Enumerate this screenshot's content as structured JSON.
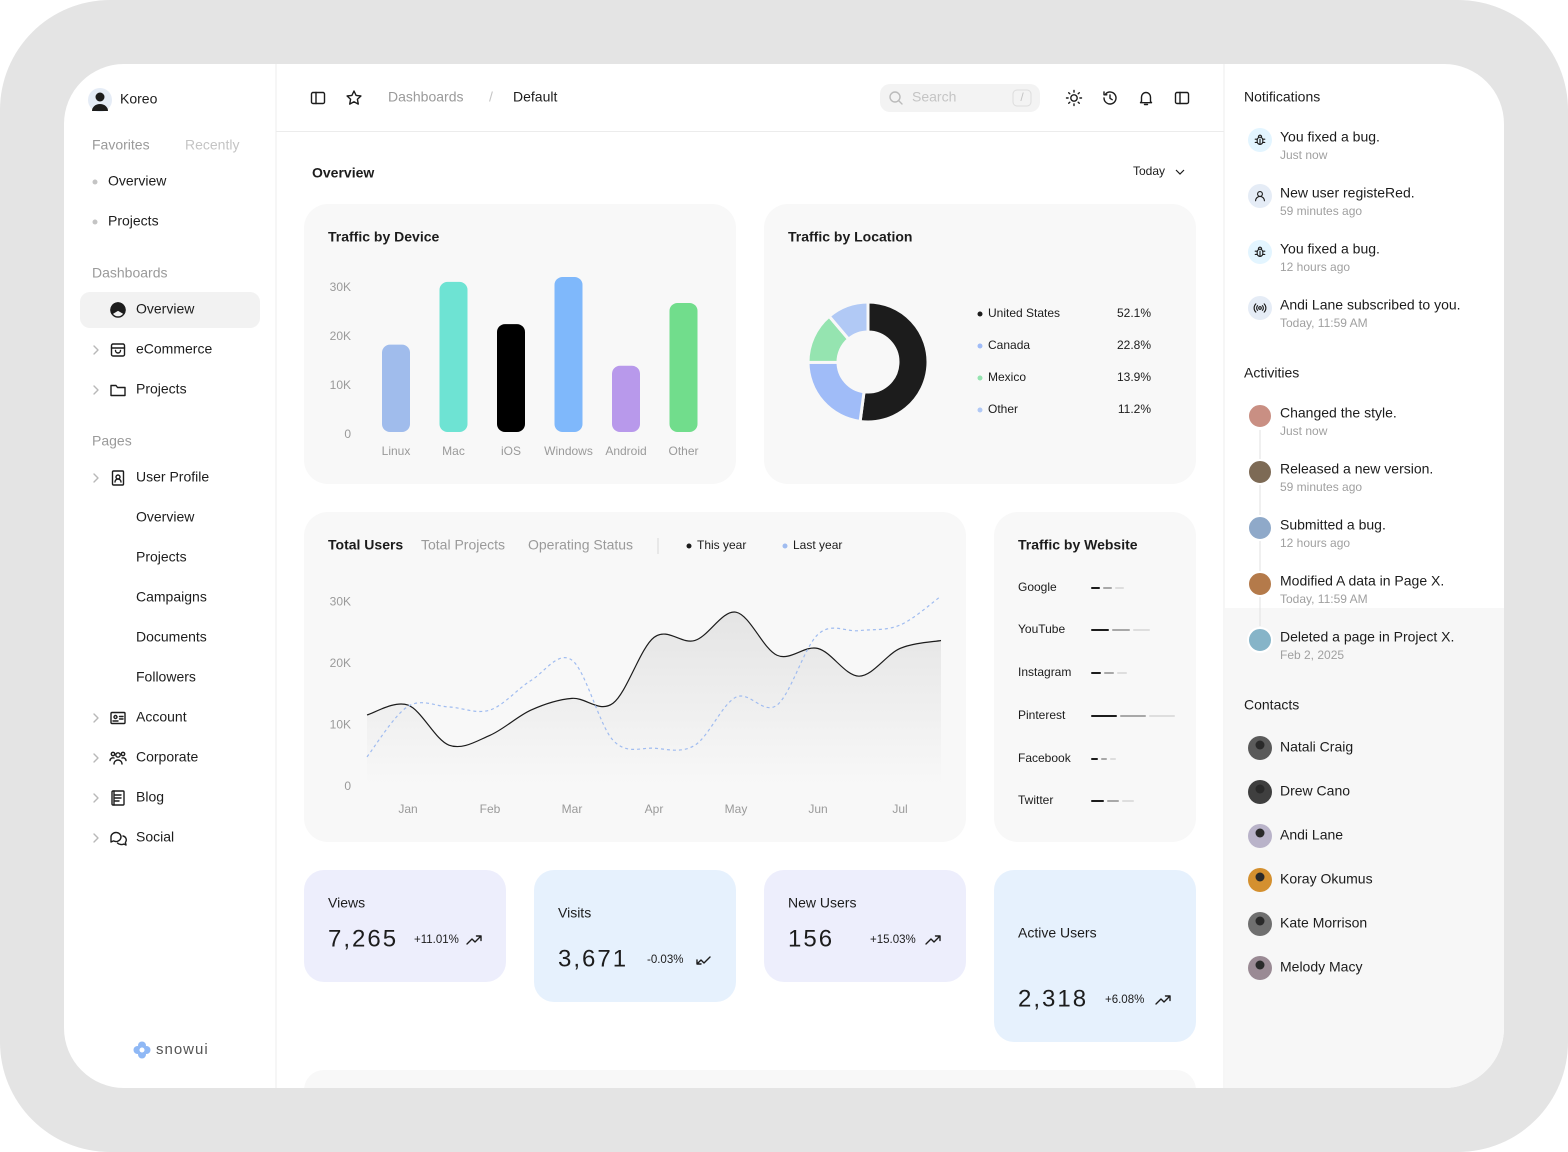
{
  "sidebar": {
    "brand": "Koreo",
    "tabs": [
      "Favorites",
      "Recently"
    ],
    "favorites": [
      "Overview",
      "Projects"
    ],
    "dashboards_heading": "Dashboards",
    "dashboards": [
      "Overview",
      "eCommerce",
      "Projects"
    ],
    "pages_heading": "Pages",
    "pages": [
      "User Profile",
      "Overview",
      "Projects",
      "Campaigns",
      "Documents",
      "Followers",
      "Account",
      "Corporate",
      "Blog",
      "Social"
    ],
    "logo": "snowui"
  },
  "topbar": {
    "breadcrumb": [
      "Dashboards",
      "/",
      "Default"
    ],
    "search": "Search",
    "shortcut": "/"
  },
  "overview": {
    "title": "Overview",
    "range": "Today"
  },
  "chart_data": [
    {
      "type": "bar",
      "title": "Traffic by Device",
      "categories": [
        "Linux",
        "Mac",
        "iOS",
        "Windows",
        "Android",
        "Other"
      ],
      "values": [
        17800,
        30600,
        22000,
        31600,
        13500,
        26300
      ],
      "colors": [
        "#a0bcec",
        "#6ee3d3",
        "#000000",
        "#7fb8fb",
        "#b899eb",
        "#71dd8c"
      ],
      "ylim": [
        0,
        32000
      ],
      "yticks": [
        0,
        {
          "value": 10000,
          "label": "10K"
        },
        {
          "value": 20000,
          "label": "20K"
        },
        {
          "value": 30000,
          "label": "30K"
        }
      ]
    },
    {
      "type": "pie",
      "title": "Traffic by Location",
      "donut": true,
      "categories": [
        "United States",
        "Canada",
        "Mexico",
        "Other"
      ],
      "values": [
        52.1,
        22.8,
        13.9,
        11.2
      ],
      "value_labels": [
        "52.1%",
        "22.8%",
        "13.9%",
        "11.2%"
      ],
      "colors": [
        "#1c1c1c",
        "#a0bcf8",
        "#95e4b0",
        "#b1c9f5"
      ]
    },
    {
      "type": "line",
      "title": "Total Users",
      "tabs": [
        "Total Projects",
        "Operating Status"
      ],
      "categories": [
        null,
        "Jan",
        null,
        "Feb",
        null,
        "Mar",
        null,
        "Apr",
        null,
        "May",
        null,
        "Jun",
        null,
        "Jul",
        null
      ],
      "series": [
        {
          "name": "This year",
          "color": "#1c1c1c",
          "style": "solid",
          "area": true,
          "values": [
            11700,
            13300,
            6800,
            8400,
            12500,
            14400,
            13600,
            24300,
            23800,
            28400,
            21400,
            22500,
            18000,
            22500,
            23800
          ]
        },
        {
          "name": "Last year",
          "color": "#a0bcf0",
          "style": "dashed",
          "values": [
            4900,
            13100,
            13000,
            12500,
            17300,
            20600,
            7600,
            6300,
            6800,
            14600,
            13300,
            24800,
            25400,
            26300,
            31000
          ]
        }
      ],
      "ylim": [
        0,
        32000
      ],
      "yticks": [
        0,
        {
          "value": 10000,
          "label": "10K"
        },
        {
          "value": 20000,
          "label": "20K"
        },
        {
          "value": 30000,
          "label": "30K"
        }
      ]
    },
    {
      "type": "bar",
      "orientation": "horizontal",
      "stacked": true,
      "title": "Traffic by Website",
      "categories": [
        "Google",
        "YouTube",
        "Instagram",
        "Pinterest",
        "Facebook",
        "Twitter"
      ],
      "series": [
        {
          "color": "#1c1c1c",
          "values": [
            9,
            18,
            10,
            26,
            7,
            13
          ]
        },
        {
          "color": "#a8a8a8",
          "values": [
            9,
            18,
            10,
            26,
            6,
            12
          ]
        },
        {
          "color": "#dedede",
          "values": [
            9,
            17,
            10,
            26,
            6,
            12
          ]
        }
      ],
      "xlim": [
        0,
        100
      ]
    }
  ],
  "stats": [
    {
      "label": "Views",
      "value": "7,265",
      "change": "+11.01%"
    },
    {
      "label": "Visits",
      "value": "3,671",
      "change": "-0.03%"
    },
    {
      "label": "New Users",
      "value": "156",
      "change": "+15.03%"
    },
    {
      "label": "Active Users",
      "value": "2,318",
      "change": "+6.08%"
    }
  ],
  "notifications": {
    "title": "Notifications",
    "items": [
      {
        "text": "You fixed a bug.",
        "time": "Just now"
      },
      {
        "text": "New user registeRed.",
        "time": "59 minutes ago"
      },
      {
        "text": "You fixed a bug.",
        "time": "12 hours ago"
      },
      {
        "text": "Andi Lane subscribed to you.",
        "time": "Today, 11:59 AM"
      }
    ]
  },
  "activities": {
    "title": "Activities",
    "items": [
      {
        "text": "Changed the style.",
        "time": "Just now"
      },
      {
        "text": "Released a new version.",
        "time": "59 minutes ago"
      },
      {
        "text": "Submitted a bug.",
        "time": "12 hours ago"
      },
      {
        "text": "Modified A data in Page X.",
        "time": "Today, 11:59 AM"
      },
      {
        "text": "Deleted a page in Project X.",
        "time": "Feb 2, 2025"
      }
    ]
  },
  "contacts": {
    "title": "Contacts",
    "items": [
      "Natali Craig",
      "Drew Cano",
      "Andi Lane",
      "Koray Okumus",
      "Kate Morrison",
      "Melody Macy"
    ]
  }
}
